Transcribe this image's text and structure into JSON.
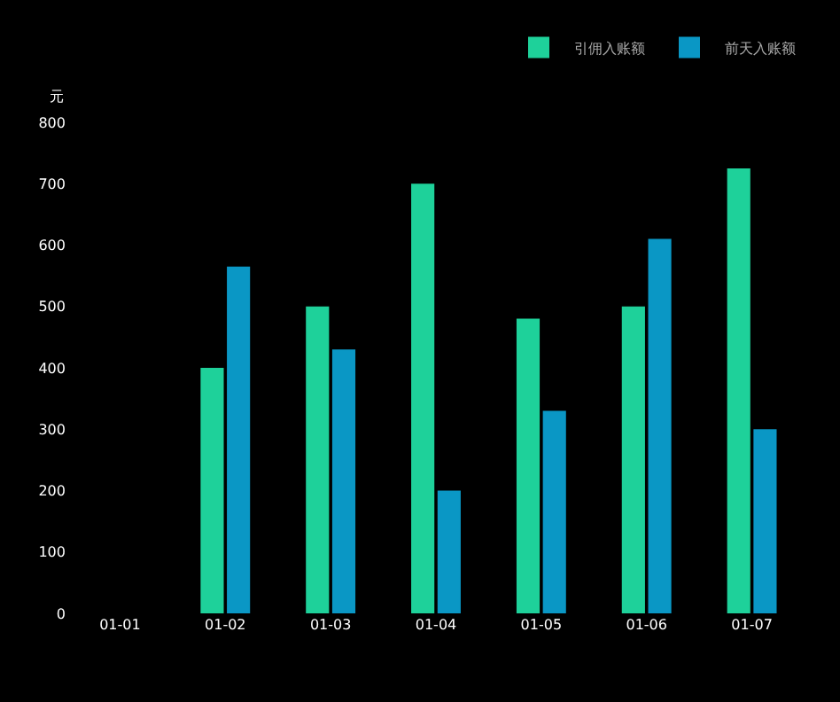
{
  "chart_data": {
    "type": "bar",
    "ylabel": "元",
    "categories": [
      "01-01",
      "01-02",
      "01-03",
      "01-04",
      "01-05",
      "01-06",
      "01-07"
    ],
    "series": [
      {
        "name": "引佣入账额",
        "color": "#1ed19a",
        "values": [
          0,
          400,
          500,
          700,
          480,
          500,
          725
        ]
      },
      {
        "name": "前天入账额",
        "color": "#0a97c5",
        "values": [
          0,
          565,
          430,
          200,
          330,
          610,
          300
        ]
      }
    ],
    "ylim": [
      0,
      800
    ],
    "yticks": [
      0,
      100,
      200,
      300,
      400,
      500,
      600,
      700,
      800
    ],
    "grid": false,
    "legend": "top right"
  }
}
